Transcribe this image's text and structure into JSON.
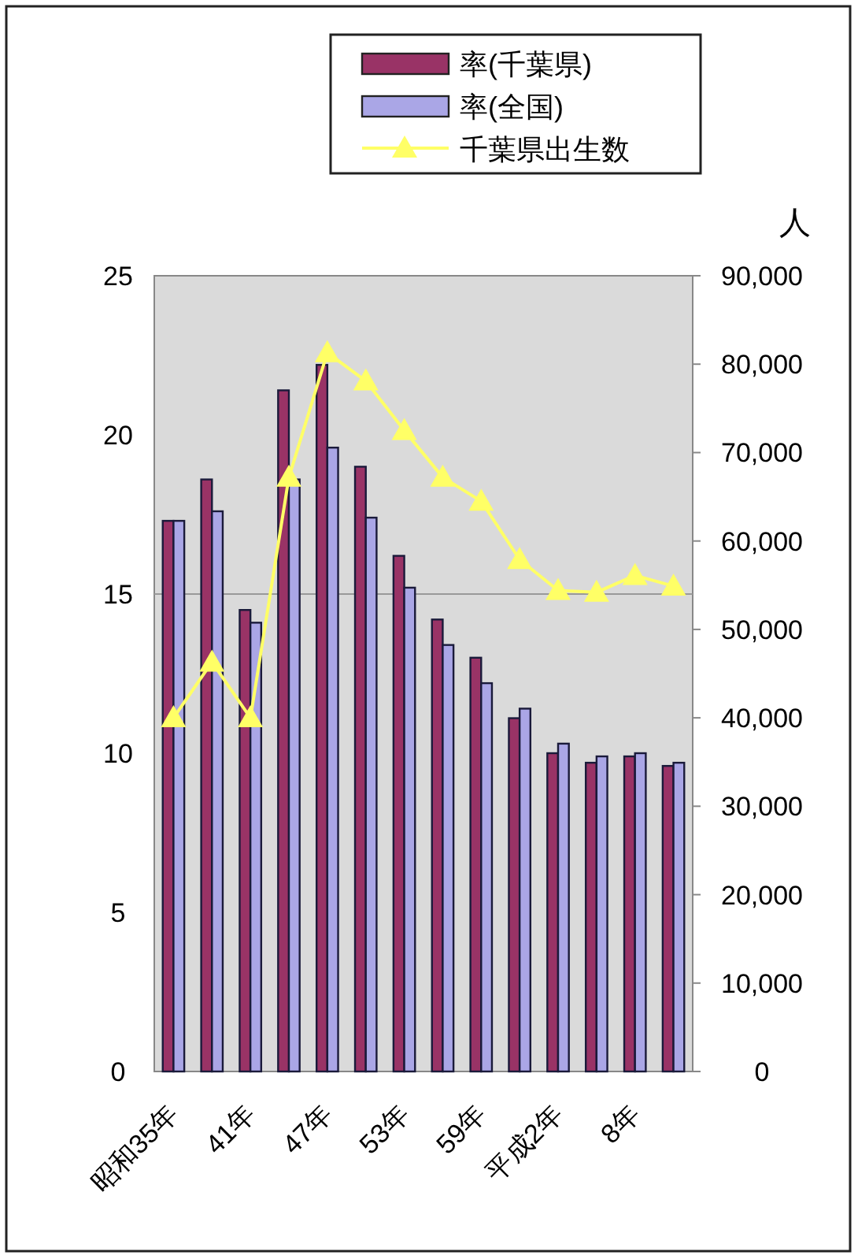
{
  "chart_data": {
    "type": "bar",
    "categories": [
      "昭和35年",
      null,
      "41年",
      null,
      "47年",
      null,
      "53年",
      null,
      "59年",
      null,
      "平成2年",
      null,
      "8年",
      null
    ],
    "series": [
      {
        "name": "率(千葉県)",
        "color": "#993366",
        "values": [
          17.3,
          18.6,
          14.5,
          21.4,
          22.2,
          19.0,
          16.2,
          14.2,
          13.0,
          11.1,
          10.0,
          9.7,
          9.9,
          9.6
        ]
      },
      {
        "name": "率(全国)",
        "color": "#aaa6e6",
        "values": [
          17.3,
          17.6,
          14.1,
          18.6,
          19.6,
          17.4,
          15.2,
          13.4,
          12.2,
          11.4,
          10.3,
          9.9,
          10.0,
          9.7
        ]
      },
      {
        "name": "千葉県出生数",
        "type": "line",
        "axis": "y2",
        "color": "#ffff66",
        "marker": "triangle",
        "values": [
          40000,
          46300,
          40000,
          67200,
          81300,
          78100,
          72500,
          67200,
          64500,
          57900,
          54400,
          54200,
          56100,
          54900
        ]
      }
    ],
    "ylim": [
      0,
      25
    ],
    "yticks": [
      0,
      5,
      10,
      15,
      20,
      25
    ],
    "y2lim": [
      0,
      90000
    ],
    "y2ticks": [
      {
        "value": 0,
        "label": "0"
      },
      {
        "value": 10000,
        "label": "10,000"
      },
      {
        "value": 20000,
        "label": "20,000"
      },
      {
        "value": 30000,
        "label": "30,000"
      },
      {
        "value": 40000,
        "label": "40,000"
      },
      {
        "value": 50000,
        "label": "50,000"
      },
      {
        "value": 60000,
        "label": "60,000"
      },
      {
        "value": 70000,
        "label": "70,000"
      },
      {
        "value": 80000,
        "label": "80,000"
      },
      {
        "value": 90000,
        "label": "90,000"
      }
    ],
    "y2label": "人",
    "ref_lines": [
      {
        "axis": "y",
        "value": 15,
        "color": "#999999"
      }
    ],
    "legend": "top"
  }
}
